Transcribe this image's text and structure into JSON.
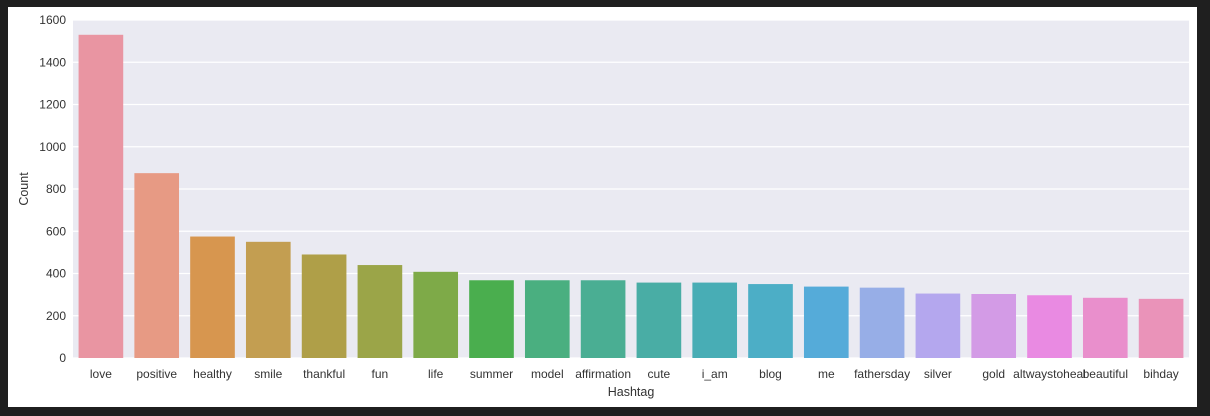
{
  "chart_data": {
    "type": "bar",
    "title": "",
    "xlabel": "Hashtag",
    "ylabel": "Count",
    "ylim": [
      0,
      1600
    ],
    "yticks": [
      0,
      200,
      400,
      600,
      800,
      1000,
      1200,
      1400,
      1600
    ],
    "grid": true,
    "legend": "none",
    "categories": [
      "love",
      "positive",
      "healthy",
      "smile",
      "thankful",
      "fun",
      "life",
      "summer",
      "model",
      "affirmation",
      "cute",
      "i_am",
      "blog",
      "me",
      "fathersday",
      "silver",
      "gold",
      "altwaystoheal",
      "beautiful",
      "bihday"
    ],
    "values": [
      1530,
      875,
      575,
      550,
      490,
      440,
      408,
      368,
      368,
      368,
      357,
      357,
      350,
      338,
      333,
      305,
      303,
      297,
      285,
      280
    ],
    "colors": [
      "#e995a2",
      "#e79a84",
      "#d7964f",
      "#c39e51",
      "#af9f48",
      "#9ba548",
      "#7eaa48",
      "#4aae4e",
      "#4aaf80",
      "#4aae93",
      "#49ada5",
      "#48adb5",
      "#4caec6",
      "#55abd9",
      "#97aee7",
      "#b4a7ee",
      "#d39be6",
      "#e98ae2",
      "#e98fcc",
      "#ea93b9"
    ]
  }
}
